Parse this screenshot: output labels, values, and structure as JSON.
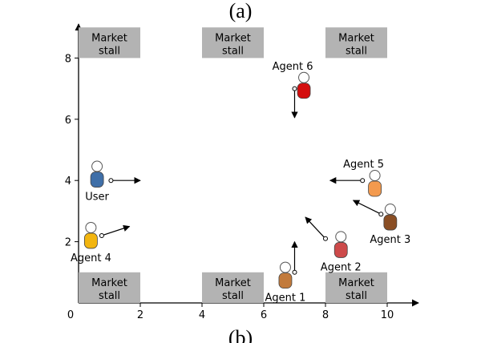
{
  "captions": {
    "top": "(a)",
    "bottom": "(b)"
  },
  "axes": {
    "x_ticks": [
      "0",
      "2",
      "4",
      "6",
      "8",
      "10"
    ],
    "y_ticks": [
      "2",
      "4",
      "6",
      "8"
    ]
  },
  "stall_label": {
    "line1": "Market",
    "line2": "stall"
  },
  "stalls": [
    {
      "x": 0,
      "y": 8
    },
    {
      "x": 4,
      "y": 8
    },
    {
      "x": 8,
      "y": 8
    },
    {
      "x": 0,
      "y": 0
    },
    {
      "x": 4,
      "y": 0
    },
    {
      "x": 8,
      "y": 0
    }
  ],
  "people": [
    {
      "label": "User",
      "x": 0.6,
      "y": 4.2,
      "color": "#3f6fa8",
      "label_pos": "below"
    },
    {
      "label": "Agent 4",
      "x": 0.4,
      "y": 2.2,
      "color": "#f2b50f",
      "label_pos": "below"
    },
    {
      "label": "Agent 6",
      "x": 7.3,
      "y": 7.1,
      "color": "#d40d0d",
      "label_pos": "above"
    },
    {
      "label": "Agent 5",
      "x": 9.6,
      "y": 3.9,
      "color": "#f39a4e",
      "label_pos": "above"
    },
    {
      "label": "Agent 3",
      "x": 10.1,
      "y": 2.8,
      "color": "#8a4e24",
      "label_pos": "below"
    },
    {
      "label": "Agent 2",
      "x": 8.5,
      "y": 1.9,
      "color": "#cd4a4a",
      "label_pos": "below"
    },
    {
      "label": "Agent 1",
      "x": 6.7,
      "y": 0.9,
      "color": "#c27a3b",
      "label_pos": "below"
    }
  ],
  "arrows": [
    {
      "from": [
        1.05,
        4.0
      ],
      "to": [
        2.0,
        4.0
      ]
    },
    {
      "from": [
        0.75,
        2.2
      ],
      "to": [
        1.65,
        2.5
      ]
    },
    {
      "from": [
        7.0,
        7.0
      ],
      "to": [
        7.0,
        6.05
      ]
    },
    {
      "from": [
        9.2,
        4.0
      ],
      "to": [
        8.15,
        4.0
      ]
    },
    {
      "from": [
        9.8,
        2.9
      ],
      "to": [
        8.9,
        3.35
      ]
    },
    {
      "from": [
        8.0,
        2.1
      ],
      "to": [
        7.35,
        2.8
      ]
    },
    {
      "from": [
        7.0,
        1.0
      ],
      "to": [
        7.0,
        2.0
      ]
    }
  ]
}
